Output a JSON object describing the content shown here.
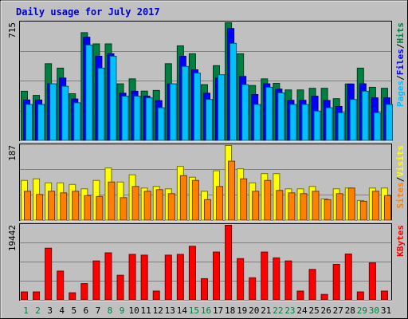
{
  "chart_data": {
    "type": "bar",
    "title": "Daily usage for July 2017",
    "categories": [
      "1",
      "2",
      "3",
      "4",
      "5",
      "6",
      "7",
      "8",
      "9",
      "10",
      "11",
      "12",
      "13",
      "14",
      "15",
      "16",
      "17",
      "18",
      "19",
      "20",
      "21",
      "22",
      "23",
      "24",
      "25",
      "26",
      "27",
      "28",
      "29",
      "30",
      "31"
    ],
    "weekend_days": [
      "1",
      "2",
      "8",
      "9",
      "15",
      "16",
      "22",
      "23",
      "29",
      "30"
    ],
    "colors": {
      "title": "#0000cc",
      "background": "#c0c0c0",
      "frame": "#cccccc",
      "hits": "#008040",
      "files": "#0000ff",
      "pages": "#00c0ff",
      "visits": "#ffff00",
      "sites": "#ff8000",
      "kbytes": "#ff0000",
      "weekday_label": "#000000",
      "weekend_label": "#008040"
    },
    "panels": [
      {
        "id": "hits-files-pages",
        "max_label": "715",
        "ylim": [
          0,
          715
        ],
        "legend": [
          {
            "label": "Hits",
            "color": "#008040"
          },
          {
            "label": "/",
            "color": "#000000"
          },
          {
            "label": "Files",
            "color": "#0000ff"
          },
          {
            "label": "/",
            "color": "#000000"
          },
          {
            "label": "Pages",
            "color": "#00c0ff"
          }
        ],
        "series": [
          {
            "name": "Hits",
            "color": "#008040",
            "values": [
              300,
              275,
              467,
              440,
              285,
              655,
              587,
              587,
              345,
              375,
              301,
              305,
              467,
              575,
              527,
              340,
              455,
              715,
              527,
              335,
              375,
              348,
              308,
              308,
              318,
              318,
              255,
              344,
              440,
              324,
              318
            ]
          },
          {
            "name": "Files",
            "color": "#0000ff",
            "values": [
              247,
              247,
              345,
              380,
              253,
              627,
              512,
              527,
              288,
              300,
              270,
              243,
              345,
              512,
              430,
              288,
              380,
              680,
              390,
              280,
              345,
              313,
              245,
              245,
              270,
              244,
              208,
              344,
              345,
              260,
              260
            ]
          },
          {
            "name": "Pages",
            "color": "#00c0ff",
            "values": [
              220,
              220,
              345,
              330,
              230,
              580,
              440,
              512,
              270,
              270,
              260,
              200,
              345,
              450,
              410,
              250,
              400,
              590,
              340,
              220,
              324,
              290,
              220,
              220,
              180,
              200,
              170,
              250,
              300,
              170,
              220
            ]
          }
        ]
      },
      {
        "id": "visits-sites",
        "max_label": "187",
        "ylim": [
          0,
          187
        ],
        "legend": [
          {
            "label": "Visits",
            "color": "#ffff00"
          },
          {
            "label": "/",
            "color": "#000000"
          },
          {
            "label": "Sites",
            "color": "#ff8000"
          }
        ],
        "series": [
          {
            "name": "Visits",
            "color": "#ffff00",
            "values": [
              100,
              104,
              94,
              94,
              90,
              79,
              100,
              131,
              96,
              114,
              81,
              85,
              79,
              135,
              108,
              73,
              124,
              187,
              129,
              94,
              117,
              117,
              79,
              79,
              85,
              54,
              79,
              81,
              50,
              81,
              81
            ]
          },
          {
            "name": "Sites",
            "color": "#ff8000",
            "values": [
              73,
              65,
              73,
              69,
              73,
              62,
              60,
              96,
              57,
              85,
              73,
              77,
              67,
              112,
              100,
              52,
              85,
              148,
              104,
              73,
              100,
              75,
              69,
              67,
              73,
              52,
              67,
              81,
              48,
              73,
              62
            ]
          }
        ]
      },
      {
        "id": "kbytes",
        "max_label": "19442",
        "ylim": [
          0,
          19442
        ],
        "legend": [
          {
            "label": "KBytes",
            "color": "#ff0000"
          }
        ],
        "series": [
          {
            "name": "KBytes",
            "color": "#ff0000",
            "values": [
              2160,
              2160,
              13500,
              7560,
              1940,
              4320,
              10200,
              12300,
              6480,
              11900,
              11700,
              2380,
              11700,
              11900,
              14000,
              5600,
              12500,
              19442,
              10800,
              5830,
              12500,
              11000,
              10200,
              2380,
              8000,
              1510,
              9300,
              12000,
              2160,
              9700,
              2380
            ]
          }
        ]
      }
    ]
  }
}
